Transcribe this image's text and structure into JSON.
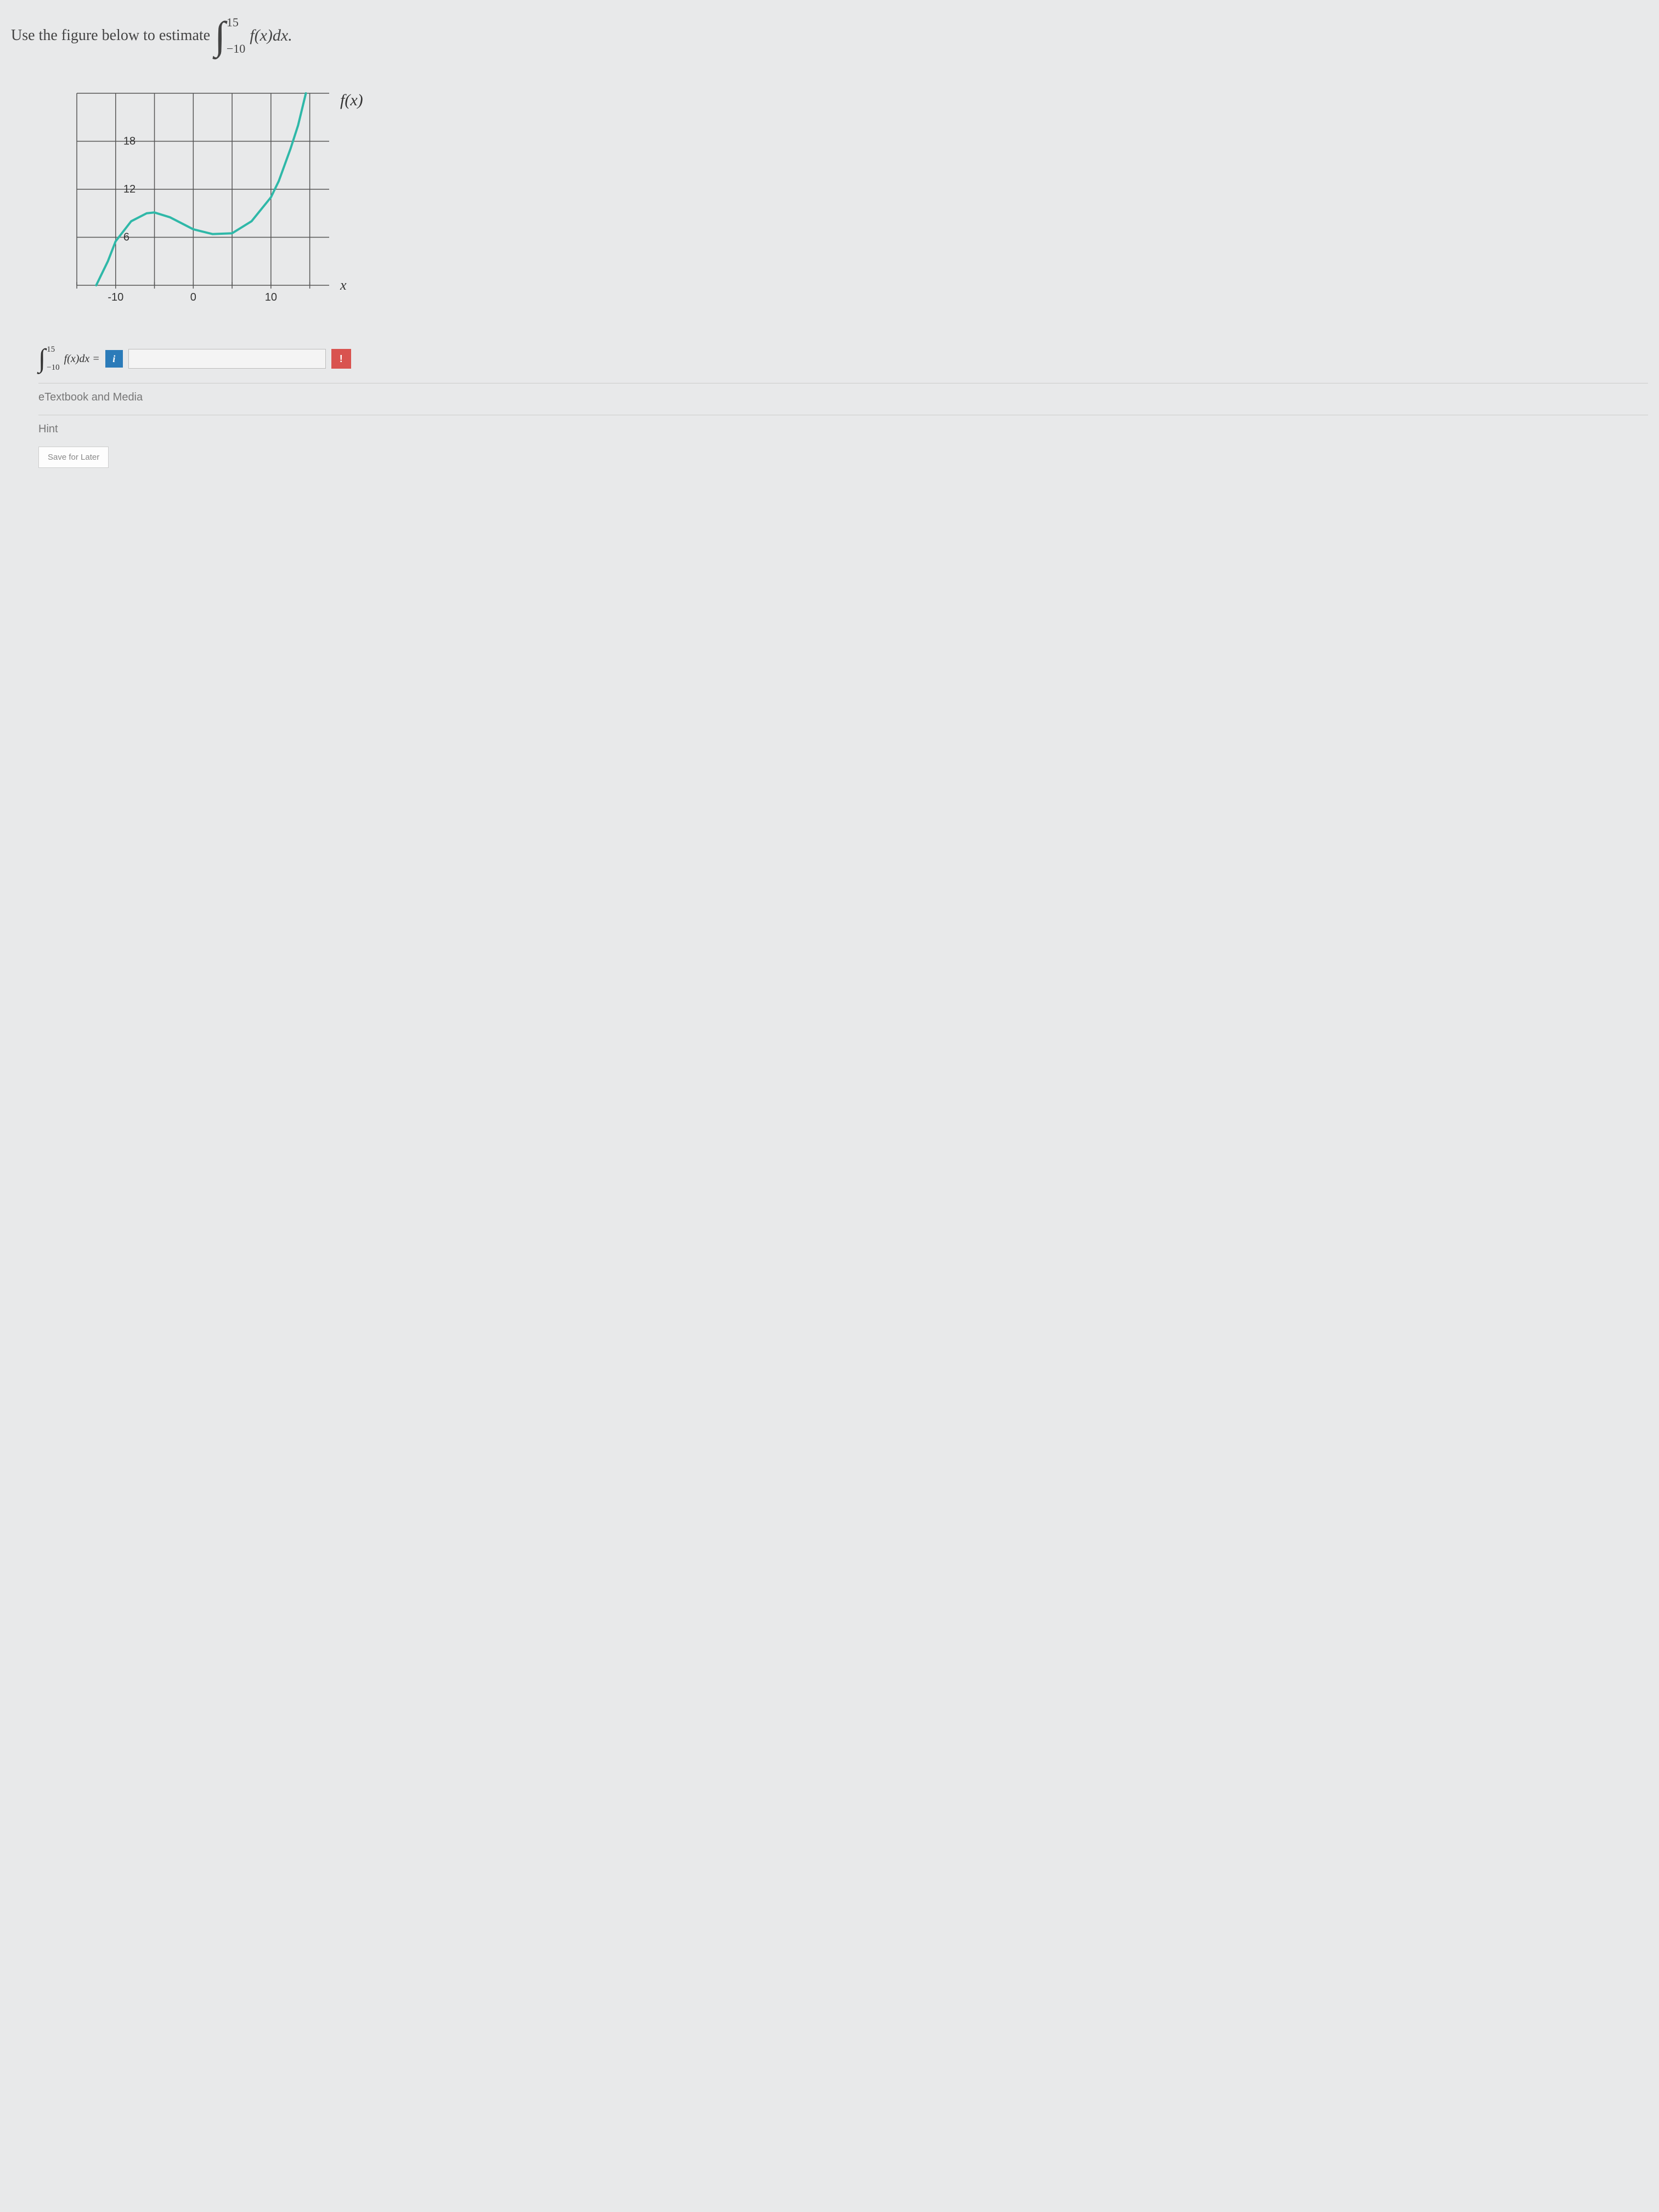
{
  "question": {
    "prefix_text": "Use the figure below to estimate",
    "integral": {
      "lower": "−10",
      "upper": "15",
      "integrand": "f(x)dx."
    }
  },
  "chart": {
    "type": "line",
    "function_label": "f(x)",
    "x_axis_label": "x",
    "xlim": [
      -15,
      17.5
    ],
    "ylim": [
      0,
      24
    ],
    "x_ticks": [
      -10,
      0,
      10
    ],
    "x_tick_labels": [
      "-10",
      "0",
      "10"
    ],
    "y_ticks": [
      6,
      12,
      18
    ],
    "y_tick_labels": [
      "6",
      "12",
      "18"
    ],
    "x_grid_step": 5,
    "y_grid_step": 6,
    "grid_color": "#555555",
    "background_color": "transparent",
    "line_color": "#2fb8a8",
    "line_width": 4,
    "text_color": "#333333",
    "label_fontsize": 20,
    "tick_fontsize": 20,
    "curve_points": [
      [
        -12.5,
        0
      ],
      [
        -12,
        1
      ],
      [
        -11,
        3
      ],
      [
        -10,
        5.5
      ],
      [
        -8,
        8
      ],
      [
        -6,
        9
      ],
      [
        -5,
        9.1
      ],
      [
        -3,
        8.5
      ],
      [
        0,
        7
      ],
      [
        2.5,
        6.4
      ],
      [
        5,
        6.5
      ],
      [
        7.5,
        8
      ],
      [
        10,
        11
      ],
      [
        11,
        13
      ],
      [
        12.5,
        17
      ],
      [
        13.5,
        20
      ],
      [
        14.5,
        24
      ]
    ]
  },
  "answer": {
    "integral": {
      "lower": "−10",
      "upper": "15",
      "integrand": "f(x)dx ="
    },
    "info_label": "i",
    "input_value": "",
    "input_placeholder": "",
    "flag_label": "!"
  },
  "links": {
    "etextbook": "eTextbook and Media",
    "hint": "Hint"
  },
  "buttons": {
    "save": "Save for Later"
  }
}
